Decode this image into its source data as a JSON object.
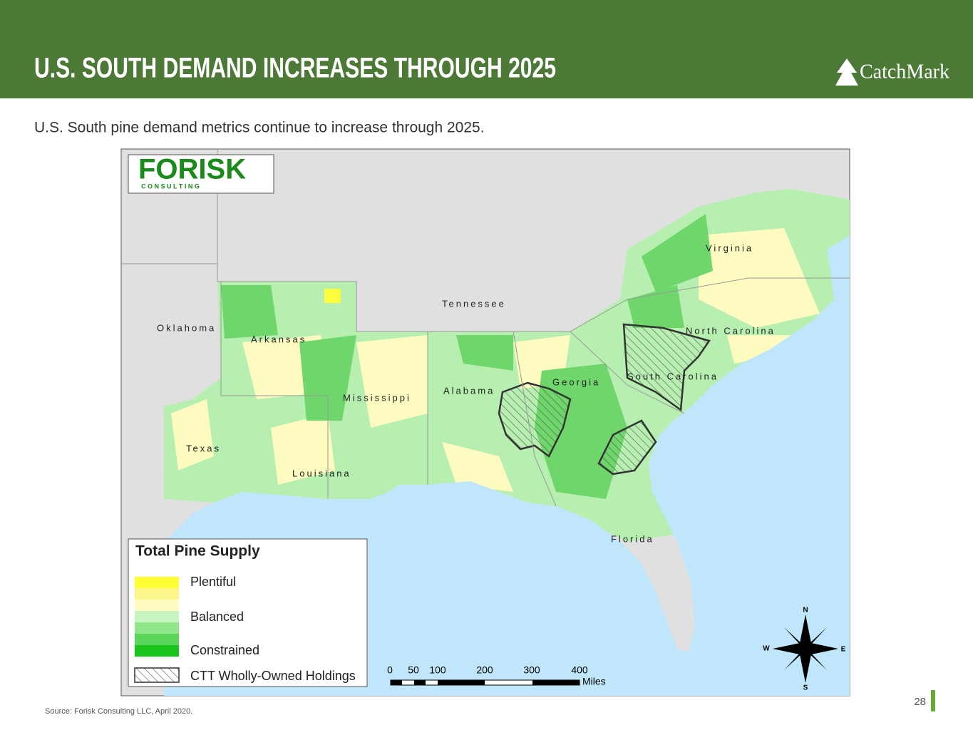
{
  "header": {
    "title": "U.S. SOUTH DEMAND INCREASES THROUGH 2025",
    "logo": "CatchMark"
  },
  "subtitle": "U.S. South pine demand metrics continue to increase through 2025.",
  "map": {
    "logo": {
      "name": "FORISK",
      "tagline": "C O N S U L T I N G"
    },
    "states": [
      "Virginia",
      "Tennessee",
      "North Carolina",
      "Oklahoma",
      "Arkansas",
      "South Carolina",
      "Georgia",
      "Alabama",
      "Mississippi",
      "Texas",
      "Louisiana",
      "Florida"
    ],
    "legend": {
      "title": "Total Pine Supply",
      "items": [
        "Plentiful",
        "Balanced",
        "Constrained",
        "CTT Wholly-Owned Holdings"
      ]
    },
    "scale": {
      "ticks": [
        0,
        50,
        100,
        200,
        300,
        400
      ],
      "unit": "Miles"
    },
    "compass": {
      "n": "N",
      "s": "S",
      "e": "E",
      "w": "W"
    }
  },
  "source": "Source:  Forisk Consulting LLC, April 2020.",
  "page_number": "28"
}
